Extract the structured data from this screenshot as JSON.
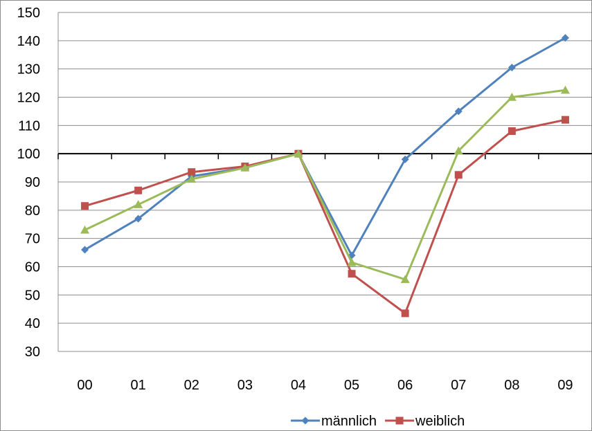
{
  "chart_data": {
    "type": "line",
    "title": "",
    "xlabel": "",
    "ylabel": "",
    "categories": [
      "00",
      "01",
      "02",
      "03",
      "04",
      "05",
      "06",
      "07",
      "08",
      "09"
    ],
    "ylim": [
      30,
      150
    ],
    "ytick_step": 10,
    "yticks": [
      "30",
      "40",
      "50",
      "60",
      "70",
      "80",
      "90",
      "100",
      "110",
      "120",
      "130",
      "140",
      "150"
    ],
    "baseline": 100,
    "grid": true,
    "legend_position": "bottom",
    "series": [
      {
        "name": "männlich",
        "color": "#4F81BD",
        "marker": "diamond",
        "in_legend": true,
        "values": [
          66,
          77,
          92,
          95,
          100,
          64,
          98,
          115,
          130.5,
          141
        ]
      },
      {
        "name": "weiblich",
        "color": "#C0504D",
        "marker": "square",
        "in_legend": true,
        "values": [
          81.5,
          87,
          93.5,
          95.5,
          100,
          57.5,
          43.5,
          92.5,
          108,
          112
        ]
      },
      {
        "color": "#9BBB59",
        "marker": "triangle",
        "in_legend": false,
        "values": [
          73,
          82,
          91,
          95,
          100,
          61.5,
          55.5,
          101,
          120,
          122.5
        ]
      }
    ]
  }
}
